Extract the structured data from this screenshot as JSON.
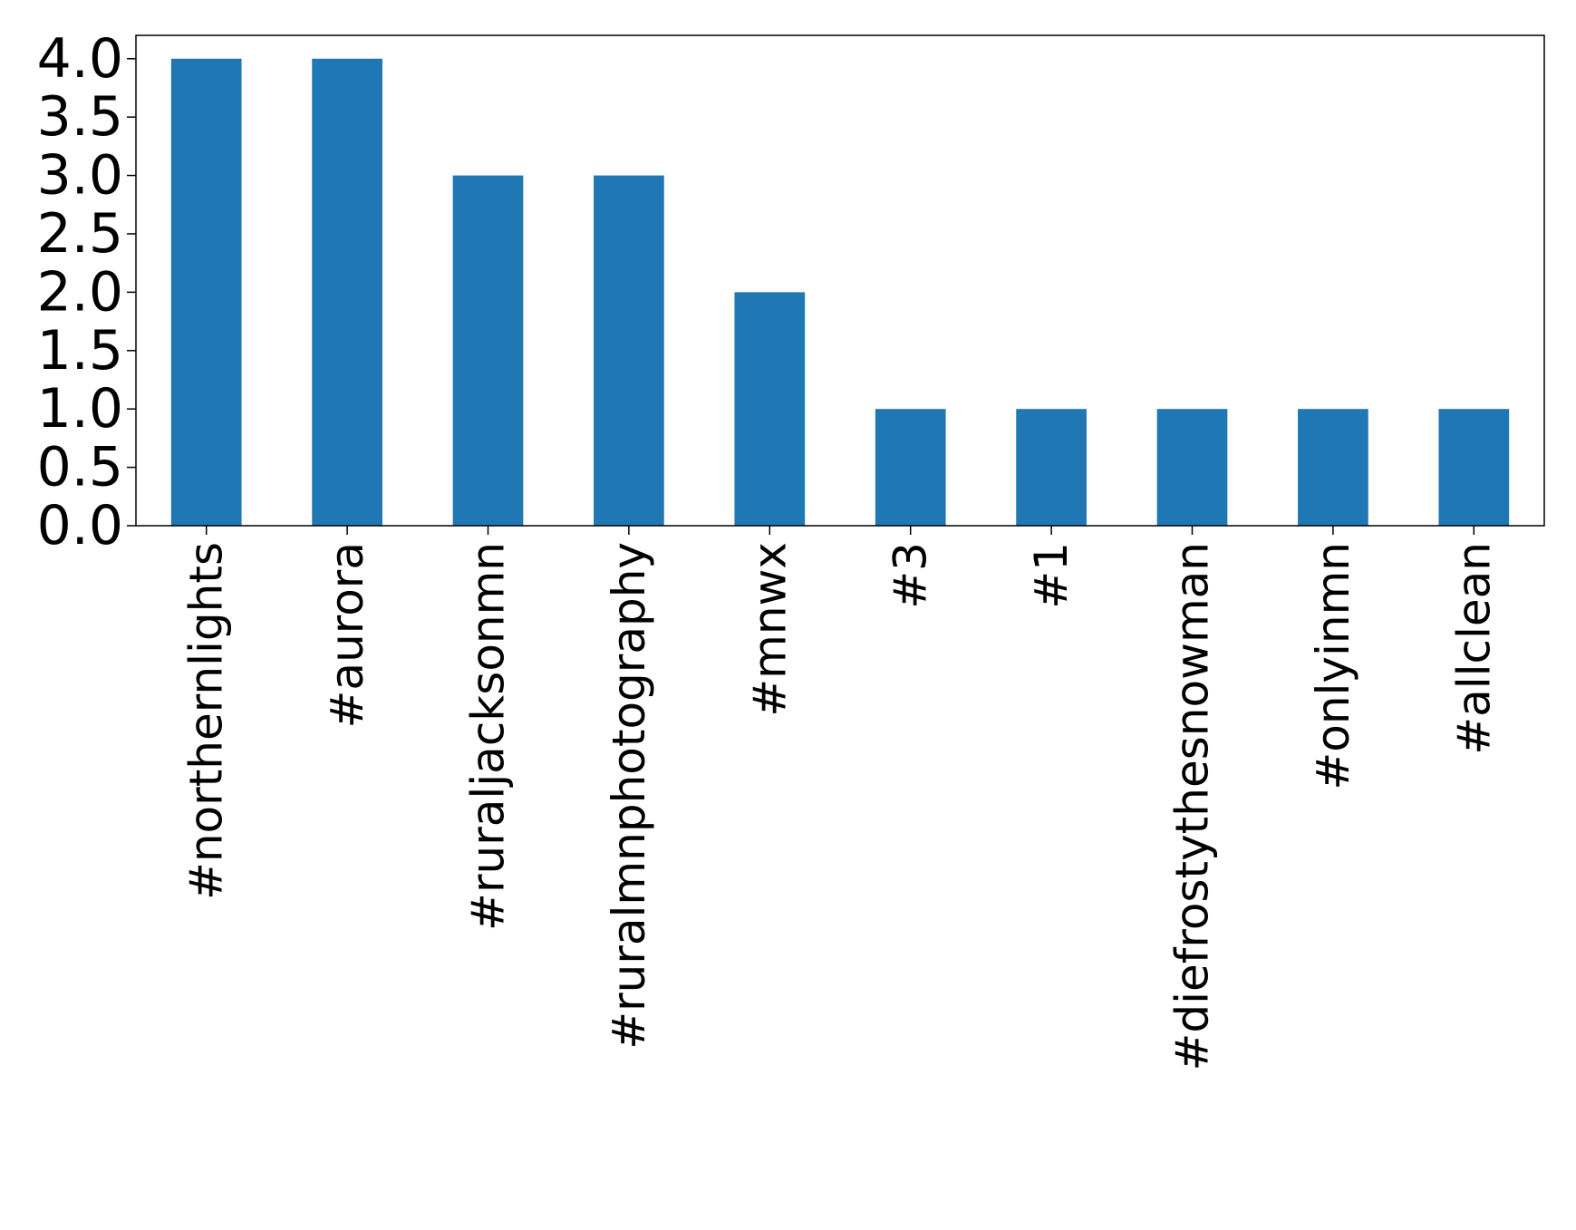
{
  "chart_data": {
    "type": "bar",
    "title": "",
    "xlabel": "",
    "ylabel": "",
    "categories": [
      "#northernlights",
      "#aurora",
      "#ruraljacksonmn",
      "#ruralmnphotography",
      "#mnwx",
      "#3",
      "#1",
      "#diefrostythesnowman",
      "#onlyinmn",
      "#allclean"
    ],
    "values": [
      4,
      4,
      3,
      3,
      2,
      1,
      1,
      1,
      1,
      1
    ],
    "ylim": [
      0,
      4.2
    ],
    "yticks": [
      "0.0",
      "0.5",
      "1.0",
      "1.5",
      "2.0",
      "2.5",
      "3.0",
      "3.5",
      "4.0"
    ],
    "bar_color": "#1f77b4",
    "grid": false,
    "legend": false
  }
}
